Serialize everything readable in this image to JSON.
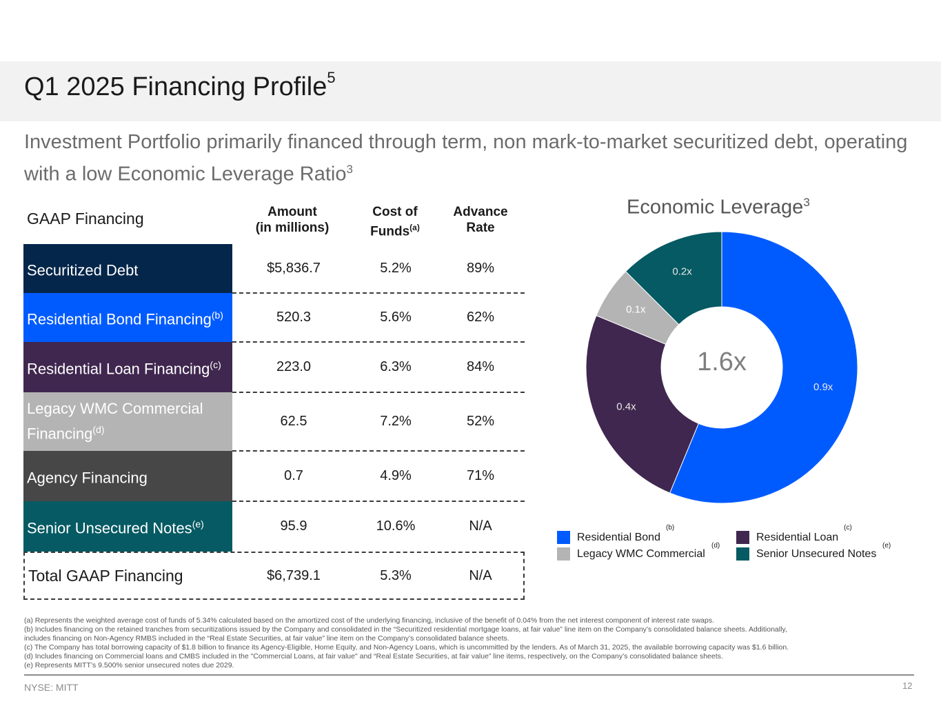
{
  "header": {
    "title": "Q1 2025 Financing Profile",
    "title_sup": "5",
    "subtitle": "Investment Portfolio primarily financed through term, non mark-to-market securitized debt, operating with a low Economic Leverage Ratio",
    "subtitle_sup": "3"
  },
  "table": {
    "label": "GAAP Financing",
    "col_amount": "Amount\n(in millions)",
    "col_amount_l1": "Amount",
    "col_amount_l2": "(in millions)",
    "col_cost_l1": "Cost of",
    "col_cost_l2": "Funds",
    "col_cost_sup": "(a)",
    "col_adv_l1": "Advance",
    "col_adv_l2": "Rate",
    "rows": [
      {
        "label": "Securitized Debt",
        "sup": "",
        "amount": "$5,836.7",
        "cost": "5.2%",
        "advance": "89%",
        "color": "#04264a"
      },
      {
        "label": "Residential Bond Financing",
        "sup": "(b)",
        "amount": "520.3",
        "cost": "5.6%",
        "advance": "62%",
        "color": "#005bff"
      },
      {
        "label": "Residential Loan Financing",
        "sup": "(c)",
        "amount": "223.0",
        "cost": "6.3%",
        "advance": "84%",
        "color": "#40274f"
      },
      {
        "label": "Legacy WMC Commercial Financing",
        "sup": "(d)",
        "amount": "62.5",
        "cost": "7.2%",
        "advance": "52%",
        "color": "#b4b4b4"
      },
      {
        "label": "Agency Financing",
        "sup": "",
        "amount": "0.7",
        "cost": "4.9%",
        "advance": "71%",
        "color": "#474747"
      },
      {
        "label": "Senior Unsecured Notes",
        "sup": "(e)",
        "amount": "95.9",
        "cost": "10.6%",
        "advance": "N/A",
        "color": "#055a63"
      }
    ],
    "total": {
      "label": "Total GAAP Financing",
      "amount": "$6,739.1",
      "cost": "5.3%",
      "advance": "N/A"
    }
  },
  "chart_data": {
    "type": "pie",
    "title": "Economic Leverage",
    "title_sup": "3",
    "center_label": "1.6x",
    "slices": [
      {
        "name": "Residential Bond",
        "sup": "(b)",
        "value": 0.9,
        "label": "0.9x",
        "color": "#005bff"
      },
      {
        "name": "Residential Loan",
        "sup": "(c)",
        "value": 0.4,
        "label": "0.4x",
        "color": "#40274f"
      },
      {
        "name": "Legacy WMC Commercial",
        "sup": "(d)",
        "value": 0.1,
        "label": "0.1x",
        "color": "#b4b4b4"
      },
      {
        "name": "Senior Unsecured Notes",
        "sup": "(e)",
        "value": 0.2,
        "label": "0.2x",
        "color": "#055a63"
      }
    ],
    "legend_position": "bottom"
  },
  "footnotes": [
    "(a) Represents the weighted average cost of funds of 5.34% calculated based on the amortized cost of the underlying financing, inclusive of the benefit of 0.04% from the net interest component of interest rate swaps.",
    "(b) Includes financing on the retained tranches from securitizations issued by the Company and consolidated in the “Securitized residential mortgage loans, at fair value” line item on the Company’s consolidated balance sheets. Additionally,",
    "includes financing on Non-Agency RMBS included in the “Real Estate Securities, at fair value” line item on the Company’s consolidated balance sheets.",
    "(c) The Company has total borrowing capacity of $1.8 billion to finance its Agency-Eligible, Home Equity, and Non-Agency Loans, which is uncommitted by the lenders. As of March 31, 2025, the available borrowing capacity was $1.6 billion.",
    "(d) Includes financing on Commercial loans and CMBS included in the \"Commercial Loans, at fair value\" and “Real Estate Securities, at fair value” line items, respectively, on the Company’s consolidated balance sheets.",
    "(e) Represents MITT’s 9.500% senior unsecured notes due 2029."
  ],
  "footer": {
    "ticker": "NYSE: MITT",
    "page": "12"
  }
}
